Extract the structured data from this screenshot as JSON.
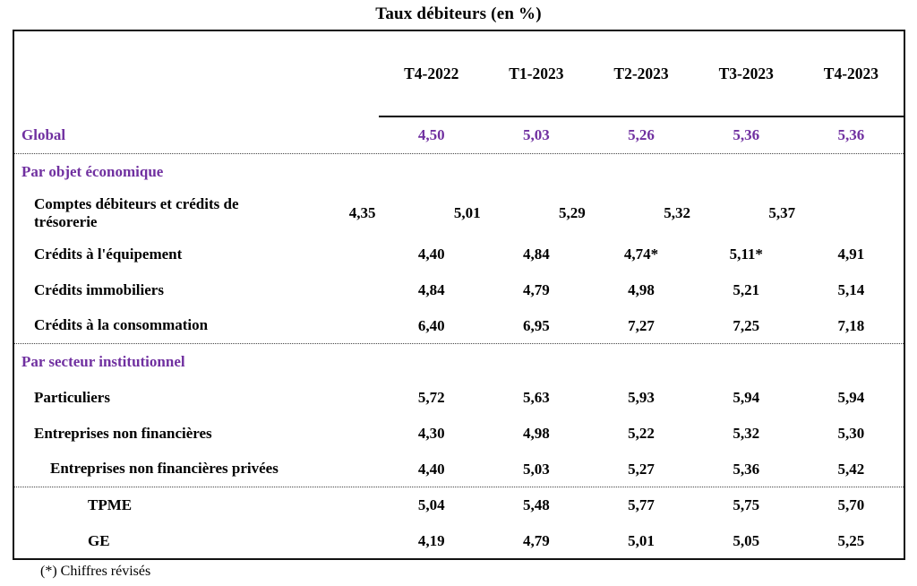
{
  "title": "Taux débiteurs (en %)",
  "columns": [
    "T4-2022",
    "T1-2023",
    "T2-2023",
    "T3-2023",
    "T4-2023"
  ],
  "rows": [
    {
      "label": "Global",
      "kind": "global",
      "indent": 0,
      "divider_after": true,
      "values": [
        "4,50",
        "5,03",
        "5,26",
        "5,36",
        "5,36"
      ]
    },
    {
      "label": "Par objet économique",
      "kind": "section",
      "indent": 0,
      "divider_after": false,
      "values": []
    },
    {
      "label": "Comptes débiteurs et crédits de trésorerie",
      "kind": "data",
      "indent": 1,
      "divider_after": false,
      "values": [
        "4,35",
        "5,01",
        "5,29",
        "5,32",
        "5,37"
      ]
    },
    {
      "label": "Crédits à l'équipement",
      "kind": "data",
      "indent": 1,
      "divider_after": false,
      "values": [
        "4,40",
        "4,84",
        "4,74*",
        "5,11*",
        "4,91"
      ]
    },
    {
      "label": "Crédits immobiliers",
      "kind": "data",
      "indent": 1,
      "divider_after": false,
      "values": [
        "4,84",
        "4,79",
        "4,98",
        "5,21",
        "5,14"
      ]
    },
    {
      "label": "Crédits à la consommation",
      "kind": "data",
      "indent": 1,
      "divider_after": true,
      "values": [
        "6,40",
        "6,95",
        "7,27",
        "7,25",
        "7,18"
      ]
    },
    {
      "label": "Par secteur institutionnel",
      "kind": "section",
      "indent": 0,
      "divider_after": false,
      "values": []
    },
    {
      "label": "Particuliers",
      "kind": "data",
      "indent": 1,
      "divider_after": false,
      "values": [
        "5,72",
        "5,63",
        "5,93",
        "5,94",
        "5,94"
      ]
    },
    {
      "label": "Entreprises non financières",
      "kind": "data",
      "indent": 1,
      "divider_after": false,
      "values": [
        "4,30",
        "4,98",
        "5,22",
        "5,32",
        "5,30"
      ]
    },
    {
      "label": "Entreprises non financières privées",
      "kind": "data",
      "indent": 2,
      "divider_after": true,
      "values": [
        "4,40",
        "5,03",
        "5,27",
        "5,36",
        "5,42"
      ]
    },
    {
      "label": "TPME",
      "kind": "data",
      "indent": 3,
      "divider_after": false,
      "values": [
        "5,04",
        "5,48",
        "5,77",
        "5,75",
        "5,70"
      ]
    },
    {
      "label": "GE",
      "kind": "data",
      "indent": 3,
      "divider_after": false,
      "values": [
        "4,19",
        "4,79",
        "5,01",
        "5,05",
        "5,25"
      ]
    }
  ],
  "footnote": "(*) Chiffres révisés",
  "colors": {
    "accent_purple": "#7030A0",
    "text": "#000000",
    "border": "#111111"
  }
}
